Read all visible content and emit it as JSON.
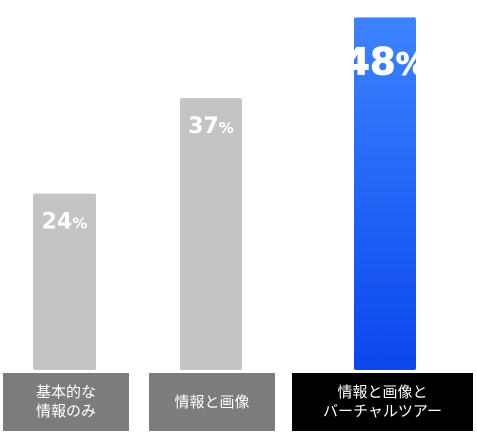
{
  "chart_data": {
    "type": "bar",
    "categories": [
      "基本的な\n情報のみ",
      "情報と画像",
      "情報と画像と\nバーチャルツアー"
    ],
    "values": [
      24,
      37,
      48
    ],
    "value_labels": [
      "24",
      "37",
      "48"
    ],
    "unit": "%",
    "ylim": [
      0,
      49
    ],
    "grid": false,
    "legend": "none",
    "colors": {
      "gray_bar": "#c4c4c4",
      "highlight_top": "#3d83ff",
      "highlight_bottom": "#0b46ee",
      "gray_label_bg": "#7c7c7c",
      "highlight_label_bg": "#000000",
      "value_text": "#ffffff"
    }
  }
}
